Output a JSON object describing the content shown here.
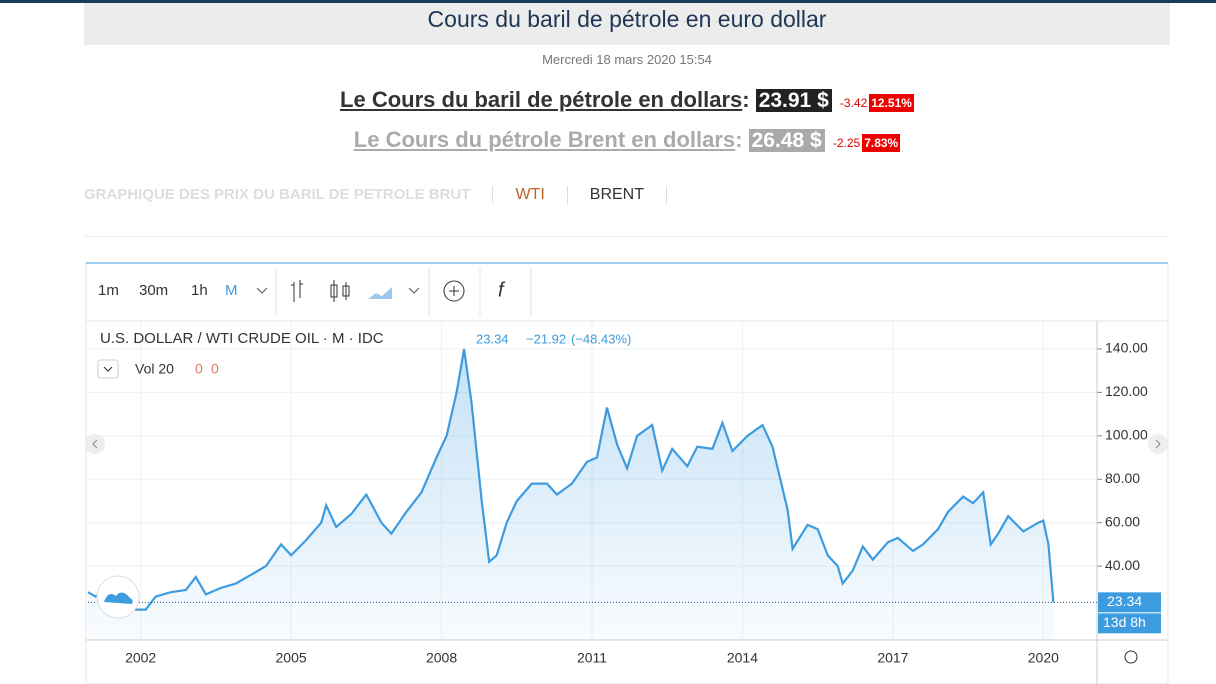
{
  "header": {
    "title": "Cours du baril de pétrole en euro dollar",
    "date": "Mercredi 18 mars 2020 15:54"
  },
  "quotes": [
    {
      "label": "Le Cours du baril de pétrole en dollars",
      "price": "23.91 $",
      "change": "-3.42",
      "percent": "12.51%"
    },
    {
      "label": "Le Cours du pétrole Brent en dollars",
      "price": "26.48 $",
      "change": "-2.25",
      "percent": "7.83%"
    }
  ],
  "tabs": [
    "GRAPHIQUE DES PRIX DU BARIL DE PETROLE BRUT",
    "WTI",
    "BRENT"
  ],
  "toolbar": {
    "intervals": [
      "1m",
      "30m",
      "1h",
      "M"
    ],
    "function": "f"
  },
  "chart_data": {
    "type": "line",
    "legend": {
      "symbol": "U.S. DOLLAR / WTI CRUDE OIL · M · IDC",
      "change": "−21.92",
      "percent": "(−48.43%)"
    },
    "volume": {
      "label": "Vol 20",
      "values": [
        "0",
        "0"
      ]
    },
    "countdown": "13d 8h",
    "x": [
      2000.95,
      2001.1,
      2001.3,
      2001.6,
      2001.9,
      2002.1,
      2002.3,
      2002.6,
      2002.9,
      2003.1,
      2003.3,
      2003.6,
      2003.9,
      2004.2,
      2004.5,
      2004.8,
      2005.0,
      2005.3,
      2005.6,
      2005.7,
      2005.9,
      2006.2,
      2006.5,
      2006.8,
      2007.0,
      2007.3,
      2007.6,
      2007.9,
      2008.1,
      2008.3,
      2008.45,
      2008.6,
      2008.8,
      2008.95,
      2009.1,
      2009.3,
      2009.5,
      2009.8,
      2010.1,
      2010.3,
      2010.6,
      2010.9,
      2011.1,
      2011.3,
      2011.5,
      2011.7,
      2011.9,
      2012.2,
      2012.4,
      2012.6,
      2012.9,
      2013.1,
      2013.4,
      2013.6,
      2013.8,
      2014.1,
      2014.4,
      2014.6,
      2014.9,
      2015.0,
      2015.3,
      2015.5,
      2015.7,
      2015.9,
      2016.0,
      2016.2,
      2016.4,
      2016.6,
      2016.9,
      2017.1,
      2017.4,
      2017.6,
      2017.9,
      2018.1,
      2018.4,
      2018.6,
      2018.8,
      2018.95,
      2019.1,
      2019.3,
      2019.6,
      2019.9,
      2020.0,
      2020.1,
      2020.2
    ],
    "series": [
      {
        "name": "WTI",
        "color": "#3d9be0",
        "values": [
          28,
          26,
          29,
          26,
          20,
          20,
          26,
          28,
          29,
          35,
          27,
          30,
          32,
          36,
          40,
          50,
          45,
          52,
          60,
          68,
          58,
          64,
          73,
          60,
          55,
          65,
          74,
          90,
          100,
          120,
          140,
          115,
          70,
          42,
          45,
          60,
          70,
          78,
          78,
          73,
          78,
          88,
          90,
          113,
          96,
          85,
          100,
          105,
          84,
          94,
          86,
          95,
          94,
          106,
          93,
          100,
          105,
          95,
          66,
          48,
          59,
          57,
          45,
          40,
          32,
          38,
          49,
          43,
          51,
          53,
          47,
          50,
          57,
          65,
          72,
          69,
          74,
          50,
          55,
          63,
          56,
          60,
          61,
          50,
          23.34
        ]
      }
    ],
    "xlim": [
      2000.95,
      2021.07
    ],
    "xticks": [
      2002,
      2005,
      2008,
      2011,
      2014,
      2017,
      2020
    ],
    "ylim": [
      6,
      152.4
    ],
    "yticks": [
      {
        "value": 40,
        "label": "40.00"
      },
      {
        "value": 60,
        "label": "60.00"
      },
      {
        "value": 80,
        "label": "80.00"
      },
      {
        "value": 100,
        "label": "100.00"
      },
      {
        "value": 120,
        "label": "120.00"
      },
      {
        "value": 140,
        "label": "140.00"
      }
    ],
    "grid": true
  }
}
